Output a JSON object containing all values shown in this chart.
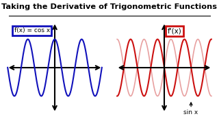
{
  "title": "Taking the Derivative of Trigonometric Functions",
  "title_fontsize": 8.2,
  "bg_color": "#ffffff",
  "left_label": "f(x) = cos x",
  "right_label": "f'(x)",
  "annotation": "sin x",
  "left_box_color": "#1111bb",
  "right_box_color": "#cc1111",
  "left_wave_color": "#1111bb",
  "right_wave_dark": "#cc1111",
  "right_wave_light": "#e8a0a0",
  "wave_freq": 2.5,
  "wave_amp": 0.78
}
